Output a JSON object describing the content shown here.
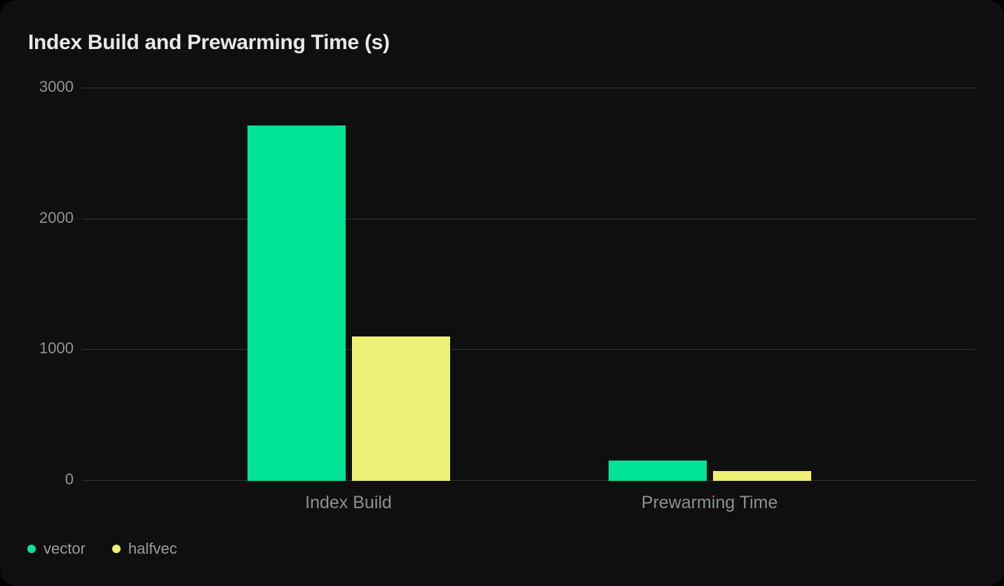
{
  "palette": {
    "page_bg": "#000000",
    "card_bg": "#0f0f0f",
    "grid": "#343434",
    "title_text": "#e8e8e8",
    "y_axis_text": "#949494",
    "x_axis_text": "#8b9095",
    "legend_text": "#9b9b9b"
  },
  "chart_data": {
    "type": "bar",
    "title": "Index Build and Prewarming Time (s)",
    "categories": [
      "Index Build",
      "Prewarming Time"
    ],
    "series": [
      {
        "name": "vector",
        "color": "#00e296",
        "values": [
          2710,
          150
        ]
      },
      {
        "name": "halfvec",
        "color": "#edf075",
        "values": [
          1100,
          70
        ]
      }
    ],
    "xlabel": "",
    "ylabel": "",
    "ylim": [
      0,
      3000
    ],
    "yticks": [
      0,
      1000,
      2000,
      3000
    ],
    "grid": "horizontal",
    "legend_position": "bottom-left"
  }
}
